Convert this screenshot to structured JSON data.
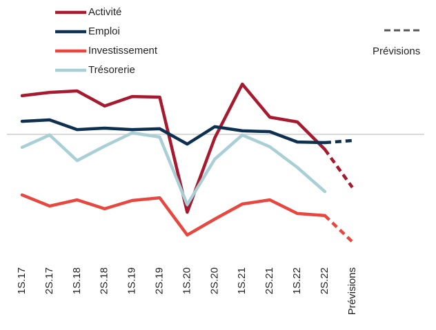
{
  "chart_data": {
    "type": "line",
    "categories": [
      "1S.17",
      "2S.17",
      "1S.18",
      "2S.18",
      "1S.19",
      "2S.19",
      "1S.20",
      "2S.20",
      "1S.21",
      "2S.21",
      "1S.22",
      "2S.22",
      "Prévisions"
    ],
    "series": [
      {
        "name": "Activité",
        "color": "#a6192e",
        "values": [
          18.7,
          20.3,
          21,
          13.7,
          18.3,
          18,
          -37.7,
          -1.7,
          24.3,
          8.3,
          6,
          -7.3,
          -25.7
        ]
      },
      {
        "name": "Emploi",
        "color": "#0e3050",
        "values": [
          6.3,
          7,
          2.3,
          3,
          2.3,
          2.7,
          -4.7,
          3.7,
          1.7,
          1.3,
          -3.7,
          -4,
          -3
        ]
      },
      {
        "name": "Investissement",
        "color": "#e8473f",
        "values": [
          -29.3,
          -34.7,
          -31.7,
          -36,
          -32,
          -30.7,
          -48.7,
          -41,
          -33.7,
          -31.7,
          -38.3,
          -39.3,
          -52
        ]
      },
      {
        "name": "Trésorerie",
        "color": "#a9cfd6",
        "values": [
          -6.3,
          -0.3,
          -12.7,
          -5.7,
          0.7,
          -1.3,
          -34,
          -12,
          -0.3,
          -6,
          -16,
          -27.7,
          null
        ]
      }
    ],
    "forecast_label": "Prévisions",
    "baseline": 0,
    "ylim": [
      -55,
      35
    ]
  }
}
